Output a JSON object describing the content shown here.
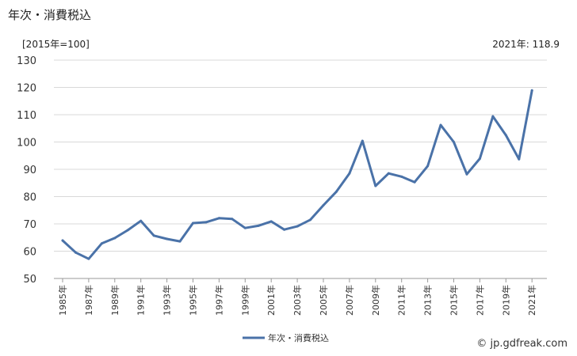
{
  "title": "年次・消費税込",
  "unit_label": "[2015年=100]",
  "latest_label": "2021年: 118.9",
  "watermark": "© jp.gdfreak.com",
  "chart_data": {
    "type": "line",
    "title": "年次・消費税込",
    "xlabel": "",
    "ylabel": "[2015年=100]",
    "ylim": [
      50,
      130
    ],
    "yticks": [
      50,
      60,
      70,
      80,
      90,
      100,
      110,
      120,
      130
    ],
    "grid": true,
    "legend_position": "bottom",
    "x": [
      "1985年",
      "1986年",
      "1987年",
      "1988年",
      "1989年",
      "1990年",
      "1991年",
      "1992年",
      "1993年",
      "1994年",
      "1995年",
      "1996年",
      "1997年",
      "1998年",
      "1999年",
      "2000年",
      "2001年",
      "2002年",
      "2003年",
      "2004年",
      "2005年",
      "2006年",
      "2007年",
      "2008年",
      "2009年",
      "2010年",
      "2011年",
      "2012年",
      "2013年",
      "2014年",
      "2015年",
      "2016年",
      "2017年",
      "2018年",
      "2019年",
      "2020年",
      "2021年"
    ],
    "x_tick_labels": [
      "1985年",
      "1987年",
      "1989年",
      "1991年",
      "1993年",
      "1995年",
      "1997年",
      "1999年",
      "2001年",
      "2003年",
      "2005年",
      "2007年",
      "2009年",
      "2011年",
      "2013年",
      "2015年",
      "2017年",
      "2019年",
      "2021年"
    ],
    "series": [
      {
        "name": "年次・消費税込",
        "color": "#4a72a8",
        "values": [
          63.9,
          59.5,
          57.2,
          62.8,
          64.8,
          67.7,
          71.1,
          65.7,
          64.5,
          63.6,
          70.3,
          70.6,
          72.1,
          71.8,
          68.5,
          69.3,
          70.9,
          67.9,
          69.1,
          71.5,
          76.8,
          81.8,
          88.5,
          100.4,
          83.9,
          88.5,
          87.3,
          85.3,
          91.2,
          106.2,
          100.0,
          88.2,
          93.9,
          109.4,
          102.5,
          93.7,
          118.9
        ]
      }
    ]
  }
}
